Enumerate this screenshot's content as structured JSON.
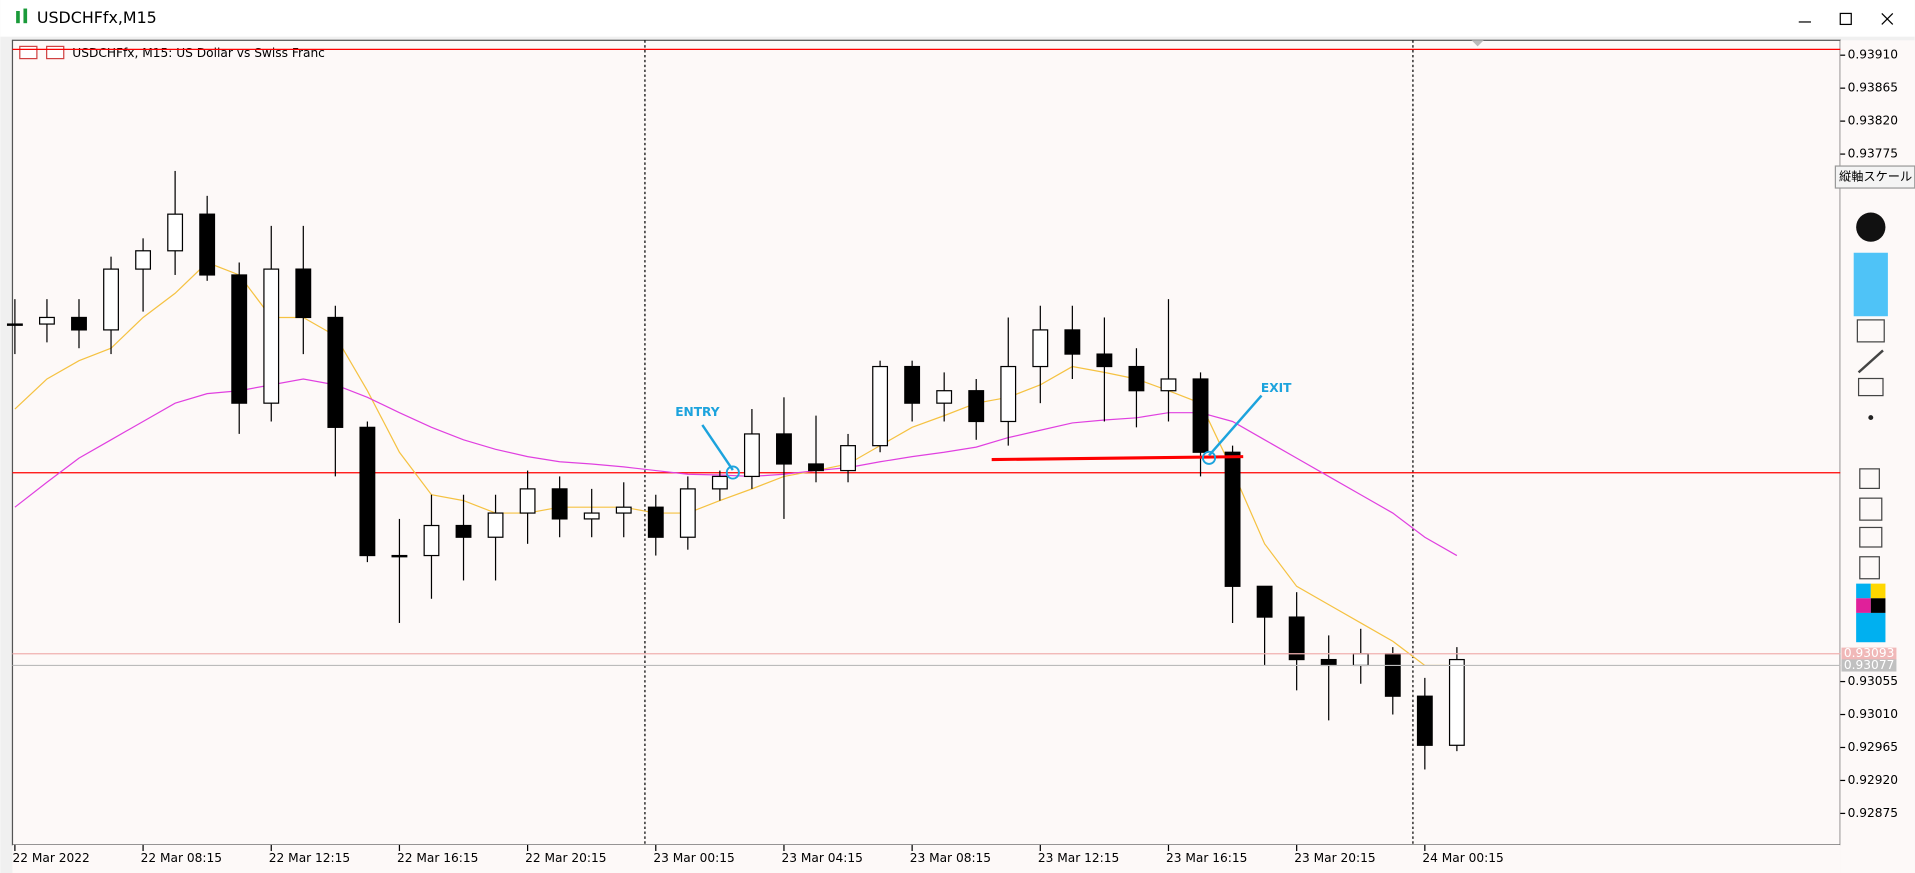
{
  "window": {
    "title": "USDCHFfx,M15",
    "tooltip": "縦軸スケール"
  },
  "chart_data": {
    "type": "candlestick",
    "title": "USDCHFfx, M15:  US Dollar vs Swiss Franc",
    "categories": [
      "22 Mar 2022",
      null,
      null,
      null,
      "22 Mar 08:15",
      null,
      null,
      null,
      "22 Mar 12:15",
      null,
      null,
      null,
      "22 Mar 16:15",
      null,
      null,
      null,
      "22 Mar 20:15",
      null,
      null,
      null,
      "23 Mar 00:15",
      null,
      null,
      null,
      "23 Mar 04:15",
      null,
      null,
      null,
      "23 Mar 08:15",
      null,
      null,
      null,
      "23 Mar 12:15",
      null,
      null,
      null,
      "23 Mar 16:15",
      null,
      null,
      null,
      "23 Mar 20:15",
      null,
      null,
      null,
      "24 Mar 00:15",
      null
    ],
    "open": [
      0.93543,
      0.93543,
      0.93552,
      0.93535,
      0.93618,
      0.93643,
      0.93693,
      0.9361,
      0.93435,
      0.93618,
      0.93552,
      0.93402,
      0.93227,
      0.93227,
      0.93268,
      0.93252,
      0.93285,
      0.93318,
      0.93277,
      0.93285,
      0.93293,
      0.93252,
      0.93318,
      0.93335,
      0.93393,
      0.93352,
      0.93343,
      0.93377,
      0.93485,
      0.93435,
      0.93452,
      0.9341,
      0.93485,
      0.93535,
      0.93502,
      0.93485,
      0.93452,
      0.93468,
      0.93368,
      0.93185,
      0.93143,
      0.93085,
      0.93077,
      0.93093,
      0.93035,
      0.92968
    ],
    "high": [
      0.93577,
      0.93577,
      0.93577,
      0.93635,
      0.9366,
      0.93752,
      0.93718,
      0.93627,
      0.93677,
      0.93677,
      0.93568,
      0.9341,
      0.93277,
      0.9331,
      0.9331,
      0.9331,
      0.93343,
      0.93335,
      0.93318,
      0.93327,
      0.9331,
      0.93335,
      0.93343,
      0.93427,
      0.93443,
      0.93418,
      0.93393,
      0.93493,
      0.93493,
      0.93477,
      0.93468,
      0.93552,
      0.93568,
      0.93568,
      0.93552,
      0.9351,
      0.93577,
      0.93477,
      0.93377,
      0.93185,
      0.93177,
      0.93118,
      0.93127,
      0.93102,
      0.9306,
      0.93102
    ],
    "low": [
      0.93502,
      0.93518,
      0.9351,
      0.93502,
      0.9356,
      0.9361,
      0.93602,
      0.93393,
      0.9341,
      0.93502,
      0.93335,
      0.93218,
      0.93135,
      0.93168,
      0.93193,
      0.93193,
      0.93243,
      0.93252,
      0.93252,
      0.93252,
      0.93227,
      0.93235,
      0.93302,
      0.93318,
      0.93277,
      0.93327,
      0.93327,
      0.93368,
      0.9341,
      0.9341,
      0.93385,
      0.93377,
      0.93435,
      0.93468,
      0.9341,
      0.93402,
      0.9341,
      0.93335,
      0.93135,
      0.93077,
      0.93043,
      0.93002,
      0.93052,
      0.9301,
      0.92935,
      0.9296
    ],
    "close": [
      0.93543,
      0.93552,
      0.93535,
      0.93618,
      0.93643,
      0.93693,
      0.9361,
      0.93435,
      0.93618,
      0.93552,
      0.93402,
      0.93227,
      0.93227,
      0.93268,
      0.93252,
      0.93285,
      0.93318,
      0.93277,
      0.93285,
      0.93293,
      0.93252,
      0.93318,
      0.93335,
      0.93393,
      0.93352,
      0.93343,
      0.93377,
      0.93485,
      0.93435,
      0.93452,
      0.9341,
      0.93485,
      0.93535,
      0.93502,
      0.93485,
      0.93452,
      0.93468,
      0.93368,
      0.93185,
      0.93143,
      0.93085,
      0.93077,
      0.93093,
      0.93035,
      0.92968,
      0.93085
    ],
    "lines": [
      {
        "color": "#f5c242",
        "values": [
          0.93427,
          0.93468,
          0.93493,
          0.9351,
          0.93552,
          0.93585,
          0.93627,
          0.9361,
          0.93552,
          0.93552,
          0.93527,
          0.93452,
          0.93368,
          0.9331,
          0.93302,
          0.93285,
          0.93285,
          0.93293,
          0.93293,
          0.93293,
          0.93285,
          0.93285,
          0.93302,
          0.93318,
          0.93335,
          0.93343,
          0.93352,
          0.93377,
          0.93402,
          0.93418,
          0.93435,
          0.93443,
          0.9346,
          0.93485,
          0.93477,
          0.93468,
          0.93452,
          0.93435,
          0.93343,
          0.93243,
          0.93185,
          0.9316,
          0.93135,
          0.9311,
          0.93077,
          0.93077
        ]
      },
      {
        "color": "#e040e0",
        "values": [
          0.93293,
          0.93327,
          0.9336,
          0.93385,
          0.9341,
          0.93435,
          0.93448,
          0.93452,
          0.9346,
          0.93468,
          0.9346,
          0.93443,
          0.93422,
          0.93402,
          0.93385,
          0.93372,
          0.93362,
          0.93355,
          0.93352,
          0.93348,
          0.93343,
          0.93338,
          0.93337,
          0.93335,
          0.93338,
          0.93343,
          0.93347,
          0.93355,
          0.93362,
          0.93368,
          0.93375,
          0.93388,
          0.93398,
          0.93408,
          0.93412,
          0.93415,
          0.93422,
          0.93422,
          0.9341,
          0.93385,
          0.9336,
          0.93335,
          0.9331,
          0.93285,
          0.93252,
          0.93227
        ]
      }
    ],
    "hlines": [
      {
        "value": 0.9334,
        "color": "#ff0000"
      },
      {
        "value": 0.93918,
        "color": "#ff0000"
      }
    ],
    "trendline": {
      "values": [
        0.93358,
        0.93362
      ],
      "color": "#ff0000"
    },
    "annotations": [
      {
        "text": "ENTRY",
        "color": "#1ca3dd"
      },
      {
        "text": "EXIT",
        "color": "#1ca3dd"
      }
    ],
    "price_labels": [
      {
        "value": 0.93093,
        "label": "0.93093"
      },
      {
        "value": 0.93077,
        "label": "0.93077"
      }
    ],
    "ylim": [
      0.92832,
      0.93927
    ],
    "yticks": [
      {
        "value": 0.9391,
        "label": "0.93910"
      },
      {
        "value": 0.93865,
        "label": "0.93865"
      },
      {
        "value": 0.9382,
        "label": "0.93820"
      },
      {
        "value": 0.93775,
        "label": "0.93775"
      },
      {
        "value": 0.93055,
        "label": "0.93055"
      },
      {
        "value": 0.9301,
        "label": "0.93010"
      },
      {
        "value": 0.92965,
        "label": "0.92965"
      },
      {
        "value": 0.9292,
        "label": "0.92920"
      },
      {
        "value": 0.92875,
        "label": "0.92875"
      }
    ]
  }
}
